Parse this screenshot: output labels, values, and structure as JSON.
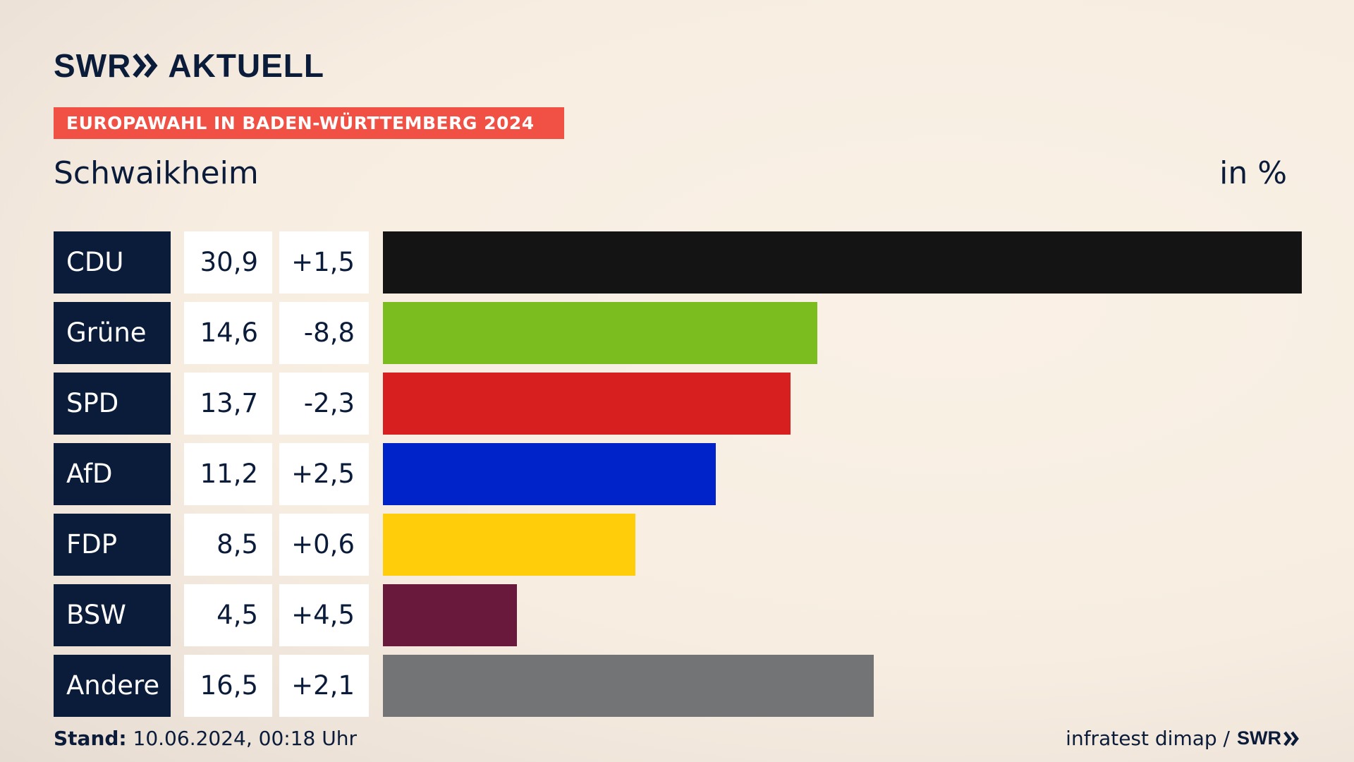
{
  "brand": {
    "swr": "SWR",
    "aktuell": "AKTUELL"
  },
  "banner": "EUROPAWAHL IN BADEN-WÜRTTEMBERG 2024",
  "place": "Schwaikheim",
  "unit": "in %",
  "chart_data": {
    "type": "bar",
    "orientation": "horizontal",
    "categories": [
      "CDU",
      "Grüne",
      "SPD",
      "AfD",
      "FDP",
      "BSW",
      "Andere"
    ],
    "values": [
      30.9,
      14.6,
      13.7,
      11.2,
      8.5,
      4.5,
      16.5
    ],
    "value_labels": [
      "30,9",
      "14,6",
      "13,7",
      "11,2",
      "8,5",
      "4,5",
      "16,5"
    ],
    "change_labels": [
      "+1,5",
      "-8,8",
      "-2,3",
      "+2,5",
      "+0,6",
      "+4,5",
      "+2,1"
    ],
    "colors": [
      "#141414",
      "#7bbd1f",
      "#d81f20",
      "#0022c9",
      "#ffcd09",
      "#69193c",
      "#737476"
    ],
    "xlim": [
      0,
      30.9
    ]
  },
  "footer": {
    "stand_label": "Stand:",
    "stand_value": "10.06.2024, 00:18 Uhr",
    "source": "infratest dimap /",
    "source_brand": "SWR"
  }
}
